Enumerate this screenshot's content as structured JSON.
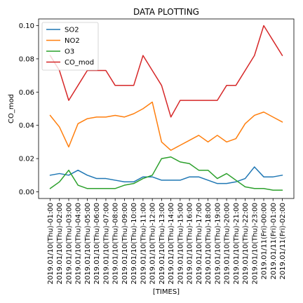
{
  "chart_data": {
    "type": "line",
    "title": "DATA PLOTTING",
    "xlabel": "[TIMES]",
    "ylabel": "CO_mod",
    "ylim": [
      -0.004,
      0.104
    ],
    "yticks": [
      0.0,
      0.02,
      0.04,
      0.06,
      0.08,
      0.1
    ],
    "ytick_labels": [
      "0.00",
      "0.02",
      "0.04",
      "0.06",
      "0.08",
      "0.10"
    ],
    "grid": false,
    "legend_position": "top-left",
    "categories": [
      "2019.01/10(Thu)-01:00",
      "2019.01/10(Thu)-02:00",
      "2019.01/10(Thu)-03:00",
      "2019.01/10(Thu)-04:00",
      "2019.01/10(Thu)-05:00",
      "2019.01/10(Thu)-06:00",
      "2019.01/10(Thu)-07:00",
      "2019.01/10(Thu)-08:00",
      "2019.01/10(Thu)-09:00",
      "2019.01/10(Thu)-10:00",
      "2019.01/10(Thu)-11:00",
      "2019.01/10(Thu)-12:00",
      "2019.01/10(Thu)-13:00",
      "2019.01/10(Thu)-14:00",
      "2019.01/10(Thu)-15:00",
      "2019.01/10(Thu)-16:00",
      "2019.01/10(Thu)-17:00",
      "2019.01/10(Thu)-18:00",
      "2019.01/10(Thu)-19:00",
      "2019.01/10(Thu)-20:00",
      "2019.01/10(Thu)-21:00",
      "2019.01/10(Thu)-22:00",
      "2019.01/10(Thu)-23:00",
      "2019.01/11(Fri)-00:00",
      "2019.01/11(Fri)-01:00",
      "2019.01/11(Fri)-02:00"
    ],
    "series": [
      {
        "name": "SO2",
        "color": "#1f77b4",
        "values": [
          0.01,
          0.011,
          0.01,
          0.013,
          0.01,
          0.008,
          0.008,
          0.007,
          0.006,
          0.006,
          0.009,
          0.009,
          0.007,
          0.007,
          0.007,
          0.009,
          0.009,
          0.007,
          0.005,
          0.005,
          0.006,
          0.008,
          0.015,
          0.009,
          0.009,
          0.01
        ]
      },
      {
        "name": "NO2",
        "color": "#ff7f0e",
        "values": [
          0.046,
          0.039,
          0.027,
          0.041,
          0.044,
          0.045,
          0.045,
          0.046,
          0.045,
          0.047,
          0.05,
          0.054,
          0.03,
          0.025,
          0.028,
          0.031,
          0.034,
          0.03,
          0.034,
          0.03,
          0.032,
          0.041,
          0.046,
          0.048,
          0.045,
          0.042
        ]
      },
      {
        "name": "O3",
        "color": "#2ca02c",
        "values": [
          0.002,
          0.006,
          0.013,
          0.004,
          0.002,
          0.002,
          0.002,
          0.002,
          0.004,
          0.005,
          0.008,
          0.01,
          0.02,
          0.021,
          0.018,
          0.017,
          0.013,
          0.013,
          0.008,
          0.011,
          0.007,
          0.003,
          0.002,
          0.002,
          0.001,
          0.001
        ]
      },
      {
        "name": "CO_mod",
        "color": "#d62728",
        "values": [
          0.082,
          0.073,
          0.055,
          0.064,
          0.073,
          0.073,
          0.073,
          0.064,
          0.064,
          0.064,
          0.082,
          0.073,
          0.064,
          0.045,
          0.055,
          0.055,
          0.055,
          0.055,
          0.055,
          0.064,
          0.064,
          0.073,
          0.082,
          0.1,
          0.091,
          0.082
        ]
      }
    ]
  }
}
